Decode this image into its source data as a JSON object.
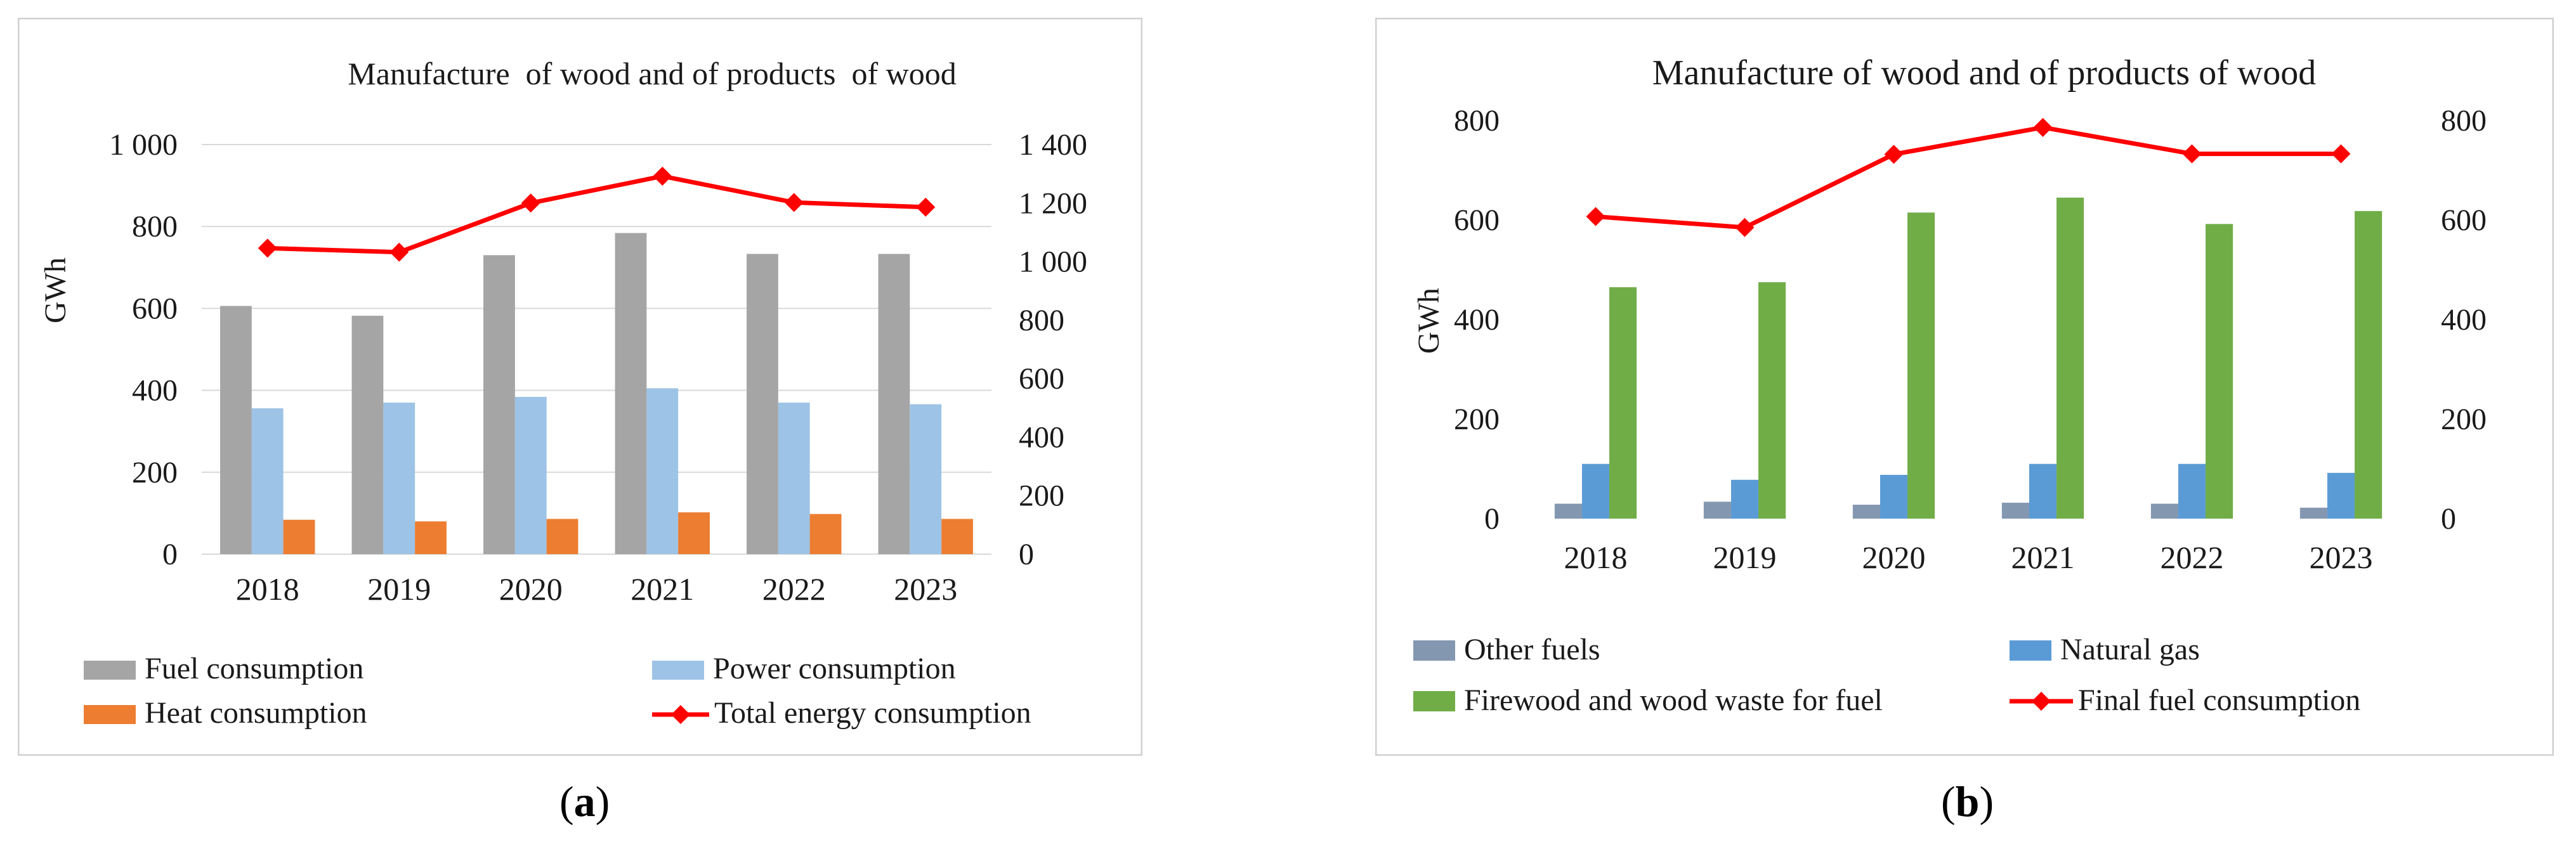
{
  "figure_labels": {
    "a": "a",
    "b": "b",
    "open": "(",
    "close": ")"
  },
  "chart_data": [
    {
      "id": "a",
      "type": "bar",
      "title": "Manufacture  of wood and of products  of wood",
      "ylabel": "GWh",
      "xlabel": "",
      "categories": [
        "2018",
        "2019",
        "2020",
        "2021",
        "2022",
        "2023"
      ],
      "ylim": [
        0,
        1000
      ],
      "y_ticks": [
        "0",
        "200",
        "400",
        "600",
        "800",
        "1 000"
      ],
      "y2lim": [
        0,
        1400
      ],
      "y2_ticks": [
        "0",
        "200",
        "400",
        "600",
        "800",
        "1 000",
        "1 200",
        "1 400"
      ],
      "series": [
        {
          "name": "Fuel consumption",
          "kind": "bar",
          "axis": "left",
          "color": "#a5a5a5",
          "values": [
            606,
            582,
            730,
            784,
            733,
            733
          ]
        },
        {
          "name": "Power consumption",
          "kind": "bar",
          "axis": "left",
          "color": "#9dc3e6",
          "values": [
            356,
            370,
            384,
            405,
            370,
            366
          ]
        },
        {
          "name": "Heat consumption",
          "kind": "bar",
          "axis": "left",
          "color": "#ed7d31",
          "values": [
            84,
            80,
            86,
            102,
            98,
            86
          ]
        },
        {
          "name": "Total energy consumption",
          "kind": "line",
          "axis": "right",
          "color": "#ff0000",
          "values": [
            1046,
            1032,
            1200,
            1292,
            1202,
            1186
          ]
        }
      ],
      "legend_order": [
        0,
        1,
        2,
        3
      ]
    },
    {
      "id": "b",
      "type": "bar",
      "title": "Manufacture of wood and of products of wood",
      "ylabel": "GWh",
      "xlabel": "",
      "categories": [
        "2018",
        "2019",
        "2020",
        "2021",
        "2022",
        "2023"
      ],
      "ylim": [
        0,
        800
      ],
      "y_ticks": [
        "0",
        "200",
        "400",
        "600",
        "800"
      ],
      "y2lim": [
        0,
        800
      ],
      "y2_ticks": [
        "0",
        "200",
        "400",
        "600",
        "800"
      ],
      "series": [
        {
          "name": "Other fuels",
          "kind": "bar",
          "axis": "left",
          "color": "#8497b0",
          "values": [
            30,
            34,
            28,
            32,
            30,
            22
          ]
        },
        {
          "name": "Natural gas",
          "kind": "bar",
          "axis": "left",
          "color": "#5b9bd5",
          "values": [
            110,
            78,
            88,
            110,
            110,
            92
          ]
        },
        {
          "name": "Firewood and wood waste for fuel",
          "kind": "bar",
          "axis": "left",
          "color": "#70ad47",
          "values": [
            465,
            475,
            615,
            645,
            592,
            618
          ]
        },
        {
          "name": "Final fuel consumption",
          "kind": "line",
          "axis": "right",
          "color": "#ff0000",
          "values": [
            607,
            585,
            732,
            786,
            733,
            733
          ]
        }
      ],
      "legend_order": [
        0,
        1,
        2,
        3
      ]
    }
  ]
}
